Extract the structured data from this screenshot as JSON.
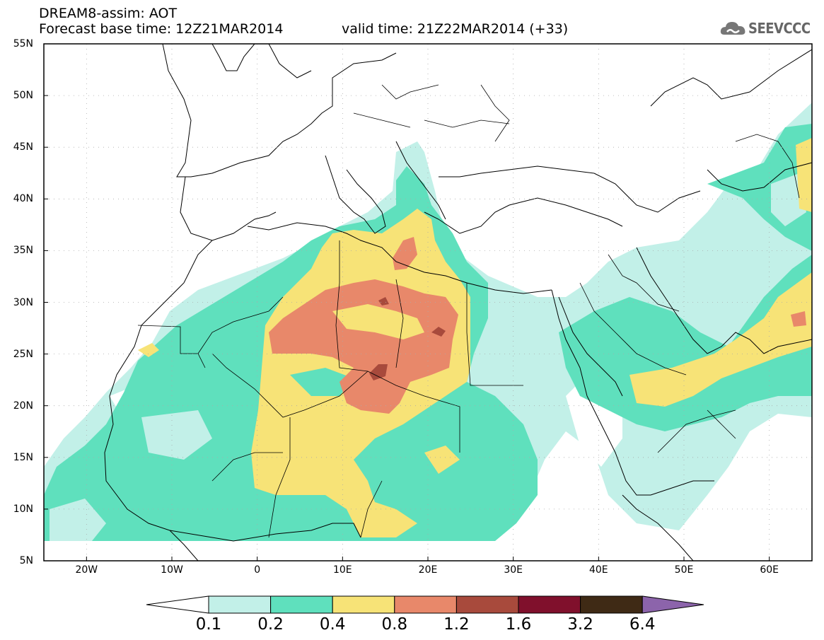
{
  "header": {
    "title": "DREAM8-assim: AOT",
    "base_time": "Forecast base time: 12Z21MAR2014",
    "valid_time": "valid time: 21Z22MAR2014 (+33)"
  },
  "logo": {
    "text": "SEEVCCC",
    "icon": "cloud-icon"
  },
  "map": {
    "lon_range": [
      -25,
      65
    ],
    "lat_range": [
      5,
      55
    ],
    "lat_labels": [
      "55N",
      "50N",
      "45N",
      "40N",
      "35N",
      "30N",
      "25N",
      "20N",
      "15N",
      "10N",
      "5N"
    ],
    "lon_labels": [
      "20W",
      "10W",
      "0",
      "10E",
      "20E",
      "30E",
      "40E",
      "50E",
      "60E"
    ],
    "grid": true
  },
  "colorbar": {
    "labels": [
      "0.1",
      "0.2",
      "0.4",
      "0.8",
      "1.2",
      "1.6",
      "3.2",
      "6.4"
    ],
    "colors": [
      "#ffffff",
      "#c2f0e8",
      "#5fe0bd",
      "#f7e377",
      "#e8886a",
      "#a84a3c",
      "#80102c",
      "#3f2a15",
      "#8c64ab"
    ]
  }
}
